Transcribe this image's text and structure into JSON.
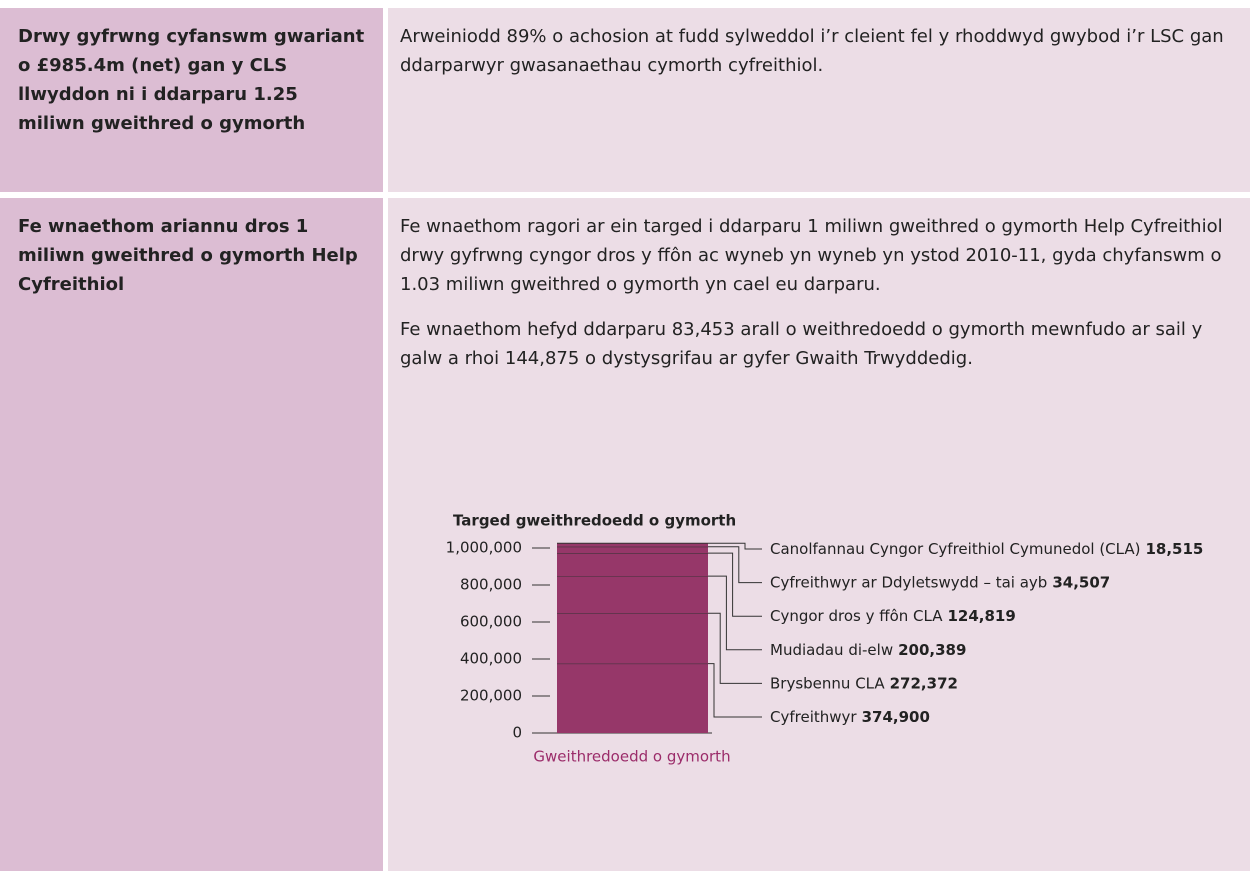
{
  "table": {
    "rows": [
      {
        "heading": "Drwy gyfrwng cyfanswm gwariant o £985.4m (net) gan y CLS llwyddon ni i ddarparu 1.25 miliwn gweithred o gymorth",
        "paragraphs": [
          "Arweiniodd 89% o achosion at fudd sylweddol i’r cleient fel y rhoddwyd gwybod i’r LSC gan ddarparwyr gwasanaethau cymorth cyfreithiol."
        ]
      },
      {
        "heading": "Fe wnaethom ariannu dros 1 miliwn gweithred o gymorth Help Cyfreithiol",
        "paragraphs": [
          "Fe wnaethom ragori ar ein targed i ddarparu 1 miliwn gweithred o gymorth Help Cyfreithiol drwy gyfrwng cyngor dros y ffôn ac wyneb yn wyneb yn ystod 2010-11, gyda chyfanswm o 1.03 miliwn gweithred o gymorth yn cael eu darparu.",
          "Fe wnaethom hefyd ddarparu 83,453 arall o weithredoedd o gymorth mewnfudo ar sail y galw a rhoi 144,875 o dystysgrifau ar gyfer Gwaith Trwyddedig."
        ]
      }
    ]
  },
  "chart_data": {
    "type": "stacked-bar",
    "title": "Targed gweithredoedd o gymorth",
    "x_label": "Gweithredoedd o gymorth",
    "color": "#963769",
    "series": [
      {
        "name": "Cyfreithwyr",
        "values": [
          374900
        ],
        "value_labels": [
          "374,900"
        ]
      },
      {
        "name": "Brysbennu CLA",
        "values": [
          272372
        ],
        "value_labels": [
          "272,372"
        ]
      },
      {
        "name": "Mudiadau di-elw",
        "values": [
          200389
        ],
        "value_labels": [
          "200,389"
        ]
      },
      {
        "name": "Cyngor dros y ffôn CLA",
        "values": [
          124819
        ],
        "value_labels": [
          "124,819"
        ]
      },
      {
        "name": "Cyfreithwyr ar Ddyletswydd – tai ayb",
        "values": [
          34507
        ],
        "value_labels": [
          "34,507"
        ]
      },
      {
        "name": "Canolfannau Cyngor Cyfreithiol Cymunedol (CLA)",
        "values": [
          18515
        ],
        "value_labels": [
          "18,515"
        ]
      }
    ],
    "ylim": [
      0,
      1000000
    ],
    "yticks": [
      0,
      {
        "value": 200000,
        "label": "200,000"
      },
      {
        "value": 400000,
        "label": "400,000"
      },
      {
        "value": 600000,
        "label": "600,000"
      },
      {
        "value": 800000,
        "label": "800,000"
      },
      {
        "value": 1000000,
        "label": "1,000,000"
      }
    ]
  }
}
